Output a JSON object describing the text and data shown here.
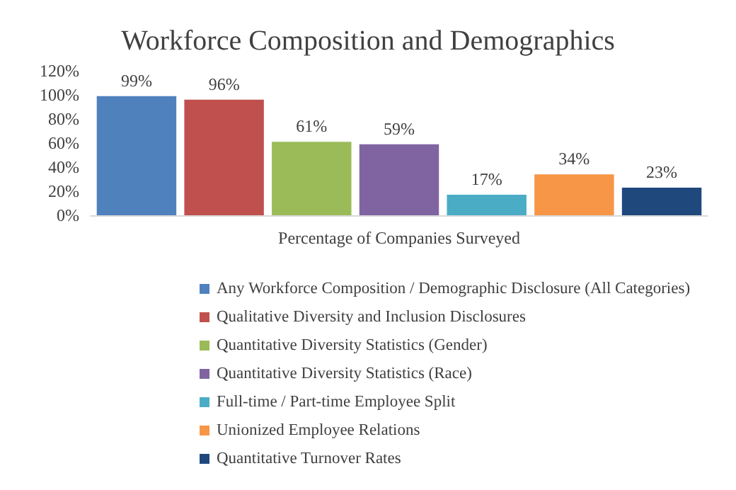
{
  "chart_data": {
    "type": "bar",
    "title": "Workforce Composition and Demographics",
    "categories": [
      "Percentage of Companies Surveyed"
    ],
    "series": [
      {
        "name": "Any Workforce Composition / Demographic Disclosure (All Categories)",
        "color": "#4f81bd",
        "values": [
          99
        ],
        "value_labels": [
          "99%"
        ]
      },
      {
        "name": "Qualitative Diversity and Inclusion Disclosures",
        "color": "#c0504d",
        "values": [
          96
        ],
        "value_labels": [
          "96%"
        ]
      },
      {
        "name": "Quantitative Diversity Statistics (Gender)",
        "color": "#9bbb59",
        "values": [
          61
        ],
        "value_labels": [
          "61%"
        ]
      },
      {
        "name": "Quantitative Diversity Statistics (Race)",
        "color": "#8064a2",
        "values": [
          59
        ],
        "value_labels": [
          "59%"
        ]
      },
      {
        "name": "Full-time / Part-time Employee Split",
        "color": "#4bacc6",
        "values": [
          17
        ],
        "value_labels": [
          "17%"
        ]
      },
      {
        "name": "Unionized Employee Relations",
        "color": "#f79646",
        "values": [
          34
        ],
        "value_labels": [
          "34%"
        ]
      },
      {
        "name": "Quantitative Turnover Rates",
        "color": "#1f497d",
        "values": [
          23
        ],
        "value_labels": [
          "23%"
        ]
      }
    ],
    "ylim": [
      0,
      120
    ],
    "yticks": [
      {
        "value": 0,
        "label": "0%"
      },
      {
        "value": 20,
        "label": "20%"
      },
      {
        "value": 40,
        "label": "40%"
      },
      {
        "value": 60,
        "label": "60%"
      },
      {
        "value": 80,
        "label": "80%"
      },
      {
        "value": 100,
        "label": "100%"
      },
      {
        "value": 120,
        "label": "120%"
      }
    ],
    "grid": false,
    "legend": "bottom"
  }
}
